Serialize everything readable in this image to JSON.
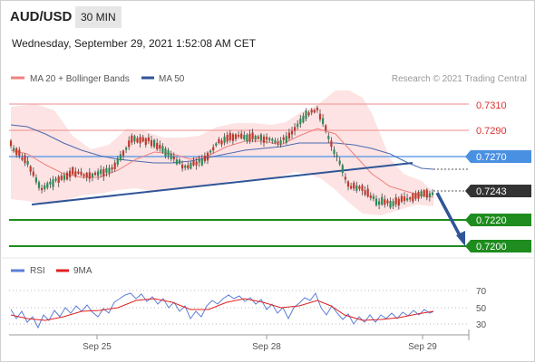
{
  "header": {
    "symbol": "AUD/USD",
    "interval": "30 MIN",
    "datetime": "Wednesday, September 29, 2021 1:52:08 AM CET"
  },
  "legend": {
    "ma20_label": "MA 20 + Bollinger Bands",
    "ma20_color": "#f08080",
    "ma50_label": "MA 50",
    "ma50_color": "#2f5597",
    "credit": "Research © 2021 Trading Central"
  },
  "price_levels": {
    "r2": "0.7310",
    "r1": "0.7290",
    "pivot": "0.7270",
    "last": "0.7243",
    "s1": "0.7220",
    "s2": "0.7200",
    "resistance_color": "#f08080",
    "pivot_color": "#4a90e2",
    "support_color": "#1e8c1e",
    "last_color": "#333333"
  },
  "rsi_panel": {
    "rsi_label": "RSI",
    "rsi_color": "#5b7fd6",
    "ma9_label": "9MA",
    "ma9_color": "#e02020",
    "levels": [
      "70",
      "50",
      "30"
    ]
  },
  "x_axis": {
    "labels": [
      "Sep 25",
      "Sep 28",
      "Sep 29"
    ]
  }
}
